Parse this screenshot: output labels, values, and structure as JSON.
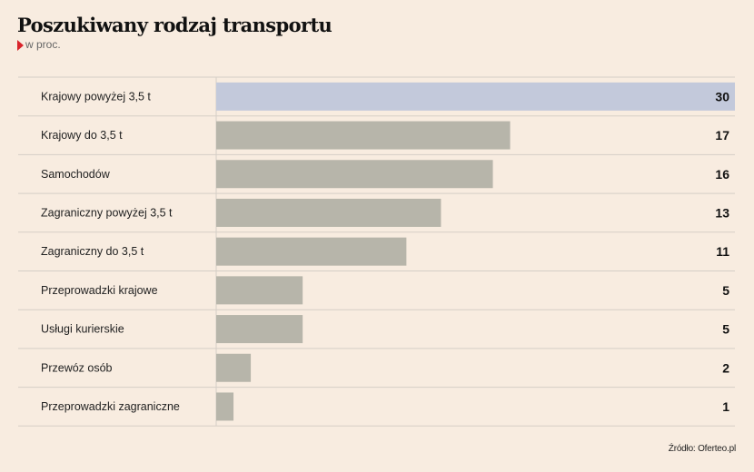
{
  "header": {
    "title": "Poszukiwany rodzaj transportu",
    "subtitle": "w proc."
  },
  "footer": {
    "source": "Źródło: Oferteo.pl"
  },
  "colors": {
    "background": "#f8ece0",
    "highlight_bar": "#c3c9db",
    "bar": "#b7b5aa",
    "marker": "#d9242b",
    "grid": "#d5cec6"
  },
  "chart_data": {
    "type": "bar",
    "orientation": "horizontal",
    "title": "Poszukiwany rodzaj transportu",
    "subtitle": "w proc.",
    "categories": [
      "Krajowy powyżej 3,5 t",
      "Krajowy do 3,5 t",
      "Samochodów",
      "Zagraniczny powyżej 3,5 t",
      "Zagraniczny do 3,5 t",
      "Przeprowadzki krajowe",
      "Usługi kurierskie",
      "Przewóz osób",
      "Przeprowadzki zagraniczne"
    ],
    "values": [
      30,
      17,
      16,
      13,
      11,
      5,
      5,
      2,
      1
    ],
    "highlighted_index": 0,
    "xlim": [
      0,
      30
    ],
    "grid": true,
    "legend": "none",
    "source": "Źródło: Oferteo.pl"
  }
}
